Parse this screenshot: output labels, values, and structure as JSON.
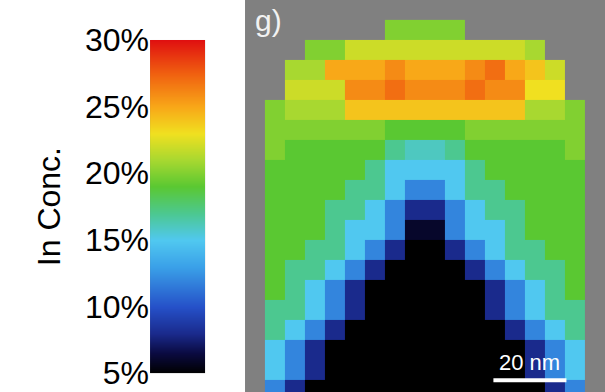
{
  "chart_data": {
    "type": "heatmap",
    "panel_label": "g)",
    "x": [
      8.2,
      13.7,
      19.2,
      24.7,
      30.1,
      35.6,
      41.1,
      46.6,
      52.1,
      57.5,
      63.0,
      68.5,
      74.0,
      79.5,
      84.9,
      90.4
    ],
    "y": [
      0.5,
      6.0,
      11.5,
      17.0,
      22.5,
      27.9,
      33.4,
      38.9,
      44.4,
      49.9,
      55.3,
      60.8,
      66.3,
      71.8,
      77.3,
      82.7,
      88.2,
      93.7,
      99.2
    ],
    "cells": [
      [
        12,
        8,
        5,
        5,
        5,
        5,
        5,
        5,
        5,
        5,
        5,
        5,
        5,
        5,
        8,
        12
      ],
      [
        15,
        12,
        8,
        5,
        5,
        5,
        5,
        5,
        5,
        5,
        5,
        5,
        5,
        8,
        12,
        15
      ],
      [
        15,
        12,
        8,
        5,
        5,
        5,
        5,
        5,
        5,
        5,
        5,
        5,
        5,
        8,
        12,
        15
      ],
      [
        17,
        15,
        12,
        8,
        5,
        5,
        5,
        5,
        5,
        5,
        5,
        5,
        8,
        12,
        15,
        17
      ],
      [
        17,
        17,
        15,
        12,
        8,
        5,
        5,
        5,
        5,
        5,
        5,
        8,
        12,
        15,
        17,
        17
      ],
      [
        19,
        17,
        15,
        12,
        8,
        5,
        5,
        5,
        5,
        5,
        5,
        8,
        12,
        15,
        17,
        19
      ],
      [
        19,
        17,
        17,
        15,
        12,
        8,
        5,
        5,
        5,
        5,
        8,
        12,
        15,
        17,
        17,
        19
      ],
      [
        19,
        19,
        17,
        17,
        15,
        12,
        8,
        5,
        5,
        8,
        12,
        15,
        17,
        17,
        19,
        19
      ],
      [
        19,
        19,
        19,
        17,
        15,
        15,
        12,
        6,
        6,
        12,
        15,
        15,
        17,
        19,
        19,
        19
      ],
      [
        19,
        19,
        19,
        17,
        17,
        15,
        12,
        8,
        8,
        12,
        15,
        17,
        17,
        19,
        19,
        19
      ],
      [
        19,
        19,
        19,
        19,
        17,
        17,
        15,
        12,
        12,
        15,
        17,
        17,
        19,
        19,
        19,
        19
      ],
      [
        19,
        19,
        19,
        19,
        19,
        17,
        15,
        15,
        15,
        15,
        17,
        19,
        19,
        19,
        19,
        19
      ],
      [
        20,
        19,
        19,
        19,
        19,
        19,
        17,
        16,
        16,
        17,
        19,
        19,
        19,
        19,
        19,
        20
      ],
      [
        20,
        20,
        20,
        20,
        20,
        20,
        19,
        19,
        19,
        19,
        20,
        20,
        20,
        20,
        20,
        20
      ],
      [
        20,
        21,
        21,
        21,
        24,
        24,
        24,
        24,
        24,
        24,
        24,
        24,
        24,
        21,
        21,
        20
      ],
      [
        null,
        22,
        22,
        22,
        26,
        26,
        27,
        26,
        26,
        26,
        27,
        26,
        26,
        23,
        23,
        null
      ],
      [
        null,
        21,
        21,
        25,
        25,
        25,
        26,
        25,
        25,
        25,
        26,
        27,
        25,
        24,
        22,
        null
      ],
      [
        null,
        null,
        20,
        20,
        22,
        22,
        22,
        22,
        22,
        22,
        22,
        22,
        22,
        21,
        null,
        null
      ],
      [
        null,
        null,
        null,
        null,
        null,
        null,
        20,
        20,
        20,
        20,
        null,
        null,
        null,
        null,
        null,
        null
      ]
    ],
    "xlim": [
      0,
      98.6
    ],
    "ylim": [
      0,
      107.4
    ],
    "tick_labels": false,
    "grid": false,
    "colorbar": {
      "title": "In Conc.",
      "range": [
        5,
        30
      ],
      "ticks": [
        {
          "value": 5,
          "label": "5%"
        },
        {
          "value": 10,
          "label": "10%"
        },
        {
          "value": 15,
          "label": "15%"
        },
        {
          "value": 20,
          "label": "20%"
        },
        {
          "value": 25,
          "label": "25%"
        },
        {
          "value": 30,
          "label": "30%"
        }
      ]
    },
    "scale_bar": {
      "length": 20,
      "label": "20 nm"
    }
  }
}
